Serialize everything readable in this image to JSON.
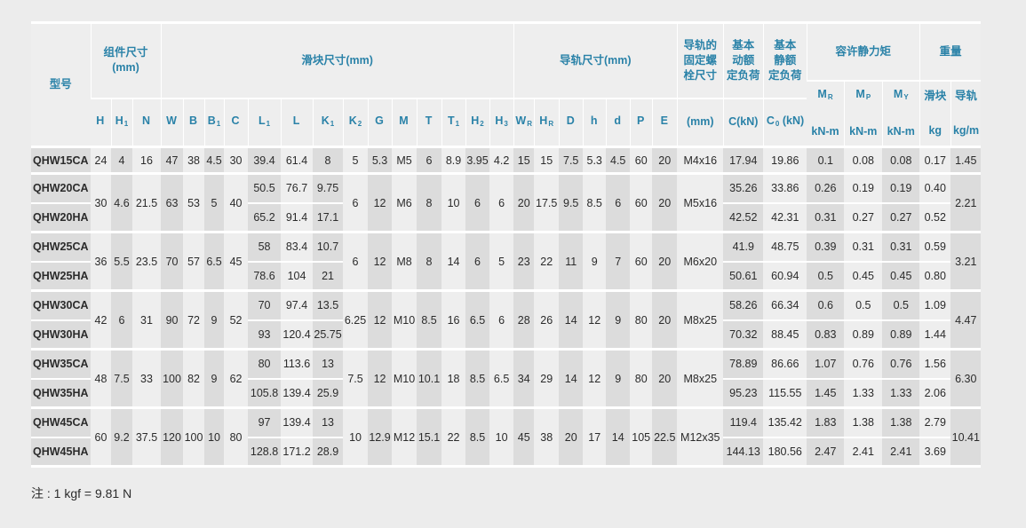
{
  "header": {
    "model": "型号",
    "group_assembly": "组件尺寸\n(mm)",
    "group_block": "滑块尺寸(mm)",
    "group_rail": "导轨尺寸(mm)",
    "bolt": "导轨的\n固定螺\n栓尺寸",
    "dynamic_load": "基本\n动额\n定负荷",
    "static_load": "基本\n静额\n定负荷",
    "moment": "容许静力矩",
    "weight": "重量",
    "sub_columns": [
      {
        "base": "H",
        "sub": ""
      },
      {
        "base": "H",
        "sub": "1"
      },
      {
        "base": "N",
        "sub": ""
      },
      {
        "base": "W",
        "sub": ""
      },
      {
        "base": "B",
        "sub": ""
      },
      {
        "base": "B",
        "sub": "1"
      },
      {
        "base": "C",
        "sub": ""
      },
      {
        "base": "L",
        "sub": "1"
      },
      {
        "base": "L",
        "sub": ""
      },
      {
        "base": "K",
        "sub": "1"
      },
      {
        "base": "K",
        "sub": "2"
      },
      {
        "base": "G",
        "sub": ""
      },
      {
        "base": "M",
        "sub": ""
      },
      {
        "base": "T",
        "sub": ""
      },
      {
        "base": "T",
        "sub": "1"
      },
      {
        "base": "H",
        "sub": "2"
      },
      {
        "base": "H",
        "sub": "3"
      },
      {
        "base": "W",
        "sub": "R"
      },
      {
        "base": "H",
        "sub": "R"
      },
      {
        "base": "D",
        "sub": ""
      },
      {
        "base": "h",
        "sub": ""
      },
      {
        "base": "d",
        "sub": ""
      },
      {
        "base": "P",
        "sub": ""
      },
      {
        "base": "E",
        "sub": ""
      }
    ],
    "bolt_unit": "(mm)",
    "dynamic_unit": "C(kN)",
    "static_unit": {
      "base": "C",
      "sub": "0",
      "rest": " (kN)"
    },
    "moment_columns": [
      {
        "base": "M",
        "sub": "R",
        "unit": "kN-m"
      },
      {
        "base": "M",
        "sub": "P",
        "unit": "kN-m"
      },
      {
        "base": "M",
        "sub": "Y",
        "unit": "kN-m"
      }
    ],
    "weight_columns": [
      {
        "label": "滑块",
        "unit": "kg"
      },
      {
        "label": "导轨",
        "unit": "kg/m"
      }
    ]
  },
  "groups": [
    {
      "shared": {
        "H": "24",
        "H1": "4",
        "N": "16",
        "W": "47",
        "B": "38",
        "B1": "4.5",
        "C": "30",
        "K2": "5",
        "G": "5.3",
        "M": "M5",
        "T": "6",
        "T1": "8.9",
        "H2": "3.95",
        "H3": "4.2",
        "WR": "15",
        "HR": "15",
        "D": "7.5",
        "h": "5.3",
        "d": "4.5",
        "P": "60",
        "E": "20",
        "bolt": "M4x16",
        "wr": "1.45"
      },
      "rows": [
        {
          "model": "QHW15CA",
          "L1": "39.4",
          "L": "61.4",
          "K1": "8",
          "Cdyn": "17.94",
          "C0": "19.86",
          "MR": "0.1",
          "MP": "0.08",
          "MY": "0.08",
          "wb": "0.17"
        }
      ]
    },
    {
      "shared": {
        "H": "30",
        "H1": "4.6",
        "N": "21.5",
        "W": "63",
        "B": "53",
        "B1": "5",
        "C": "40",
        "K2": "6",
        "G": "12",
        "M": "M6",
        "T": "8",
        "T1": "10",
        "H2": "6",
        "H3": "6",
        "WR": "20",
        "HR": "17.5",
        "D": "9.5",
        "h": "8.5",
        "d": "6",
        "P": "60",
        "E": "20",
        "bolt": "M5x16",
        "wr": "2.21"
      },
      "rows": [
        {
          "model": "QHW20CA",
          "L1": "50.5",
          "L": "76.7",
          "K1": "9.75",
          "Cdyn": "35.26",
          "C0": "33.86",
          "MR": "0.26",
          "MP": "0.19",
          "MY": "0.19",
          "wb": "0.40"
        },
        {
          "model": "QHW20HA",
          "L1": "65.2",
          "L": "91.4",
          "K1": "17.1",
          "Cdyn": "42.52",
          "C0": "42.31",
          "MR": "0.31",
          "MP": "0.27",
          "MY": "0.27",
          "wb": "0.52"
        }
      ]
    },
    {
      "shared": {
        "H": "36",
        "H1": "5.5",
        "N": "23.5",
        "W": "70",
        "B": "57",
        "B1": "6.5",
        "C": "45",
        "K2": "6",
        "G": "12",
        "M": "M8",
        "T": "8",
        "T1": "14",
        "H2": "6",
        "H3": "5",
        "WR": "23",
        "HR": "22",
        "D": "11",
        "h": "9",
        "d": "7",
        "P": "60",
        "E": "20",
        "bolt": "M6x20",
        "wr": "3.21"
      },
      "rows": [
        {
          "model": "QHW25CA",
          "L1": "58",
          "L": "83.4",
          "K1": "10.7",
          "Cdyn": "41.9",
          "C0": "48.75",
          "MR": "0.39",
          "MP": "0.31",
          "MY": "0.31",
          "wb": "0.59"
        },
        {
          "model": "QHW25HA",
          "L1": "78.6",
          "L": "104",
          "K1": "21",
          "Cdyn": "50.61",
          "C0": "60.94",
          "MR": "0.5",
          "MP": "0.45",
          "MY": "0.45",
          "wb": "0.80"
        }
      ]
    },
    {
      "shared": {
        "H": "42",
        "H1": "6",
        "N": "31",
        "W": "90",
        "B": "72",
        "B1": "9",
        "C": "52",
        "K2": "6.25",
        "G": "12",
        "M": "M10",
        "T": "8.5",
        "T1": "16",
        "H2": "6.5",
        "H3": "6",
        "WR": "28",
        "HR": "26",
        "D": "14",
        "h": "12",
        "d": "9",
        "P": "80",
        "E": "20",
        "bolt": "M8x25",
        "wr": "4.47"
      },
      "rows": [
        {
          "model": "QHW30CA",
          "L1": "70",
          "L": "97.4",
          "K1": "13.5",
          "Cdyn": "58.26",
          "C0": "66.34",
          "MR": "0.6",
          "MP": "0.5",
          "MY": "0.5",
          "wb": "1.09"
        },
        {
          "model": "QHW30HA",
          "L1": "93",
          "L": "120.4",
          "K1": "25.75",
          "Cdyn": "70.32",
          "C0": "88.45",
          "MR": "0.83",
          "MP": "0.89",
          "MY": "0.89",
          "wb": "1.44"
        }
      ]
    },
    {
      "shared": {
        "H": "48",
        "H1": "7.5",
        "N": "33",
        "W": "100",
        "B": "82",
        "B1": "9",
        "C": "62",
        "K2": "7.5",
        "G": "12",
        "M": "M10",
        "T": "10.1",
        "T1": "18",
        "H2": "8.5",
        "H3": "6.5",
        "WR": "34",
        "HR": "29",
        "D": "14",
        "h": "12",
        "d": "9",
        "P": "80",
        "E": "20",
        "bolt": "M8x25",
        "wr": "6.30"
      },
      "rows": [
        {
          "model": "QHW35CA",
          "L1": "80",
          "L": "113.6",
          "K1": "13",
          "Cdyn": "78.89",
          "C0": "86.66",
          "MR": "1.07",
          "MP": "0.76",
          "MY": "0.76",
          "wb": "1.56"
        },
        {
          "model": "QHW35HA",
          "L1": "105.8",
          "L": "139.4",
          "K1": "25.9",
          "Cdyn": "95.23",
          "C0": "115.55",
          "MR": "1.45",
          "MP": "1.33",
          "MY": "1.33",
          "wb": "2.06"
        }
      ]
    },
    {
      "shared": {
        "H": "60",
        "H1": "9.2",
        "N": "37.5",
        "W": "120",
        "B": "100",
        "B1": "10",
        "C": "80",
        "K2": "10",
        "G": "12.9",
        "M": "M12",
        "T": "15.1",
        "T1": "22",
        "H2": "8.5",
        "H3": "10",
        "WR": "45",
        "HR": "38",
        "D": "20",
        "h": "17",
        "d": "14",
        "P": "105",
        "E": "22.5",
        "bolt": "M12x35",
        "wr": "10.41"
      },
      "rows": [
        {
          "model": "QHW45CA",
          "L1": "97",
          "L": "139.4",
          "K1": "13",
          "Cdyn": "119.4",
          "C0": "135.42",
          "MR": "1.83",
          "MP": "1.38",
          "MY": "1.38",
          "wb": "2.79"
        },
        {
          "model": "QHW45HA",
          "L1": "128.8",
          "L": "171.2",
          "K1": "28.9",
          "Cdyn": "144.13",
          "C0": "180.56",
          "MR": "2.47",
          "MP": "2.41",
          "MY": "2.41",
          "wb": "3.69"
        }
      ]
    }
  ],
  "note": "注 : 1 kgf = 9.81 N",
  "colors": {
    "header_text": "#2a82a8",
    "cell_light": "#eeeeee",
    "cell_dark": "#dcdcdc",
    "separator": "#ffffff"
  }
}
